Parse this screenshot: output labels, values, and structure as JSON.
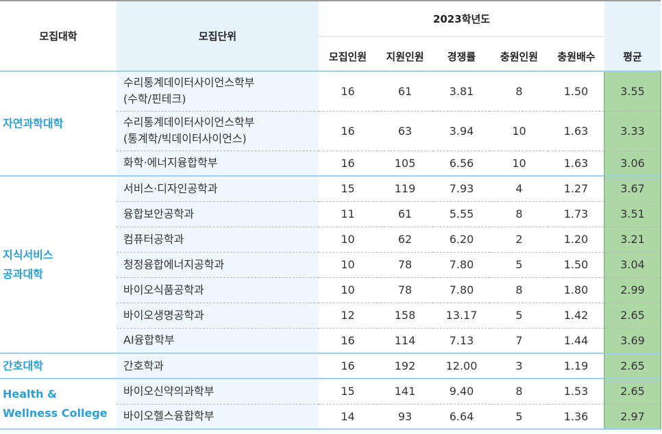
{
  "header": {
    "college": "모집대학",
    "unit": "모집단위",
    "year": "2023학년도",
    "columns": [
      "모집인원",
      "지원인원",
      "경쟁률",
      "충원인원",
      "충원배수"
    ],
    "average": "평균"
  },
  "groups": [
    {
      "college": [
        "자연과학대학"
      ],
      "rows": [
        {
          "unit": [
            "수리통계데이터사이언스학부",
            "(수학/핀테크)"
          ],
          "values": [
            "16",
            "61",
            "3.81",
            "8",
            "1.50"
          ],
          "average": "3.55"
        },
        {
          "unit": [
            "수리통계데이터사이언스학부",
            "(통계학/빅데이터사이언스)"
          ],
          "values": [
            "16",
            "63",
            "3.94",
            "10",
            "1.63"
          ],
          "average": "3.33"
        },
        {
          "unit": [
            "화학·에너지융합학부"
          ],
          "values": [
            "16",
            "105",
            "6.56",
            "10",
            "1.63"
          ],
          "average": "3.06"
        }
      ]
    },
    {
      "college": [
        "지식서비스",
        "공과대학"
      ],
      "rows": [
        {
          "unit": [
            "서비스·디자인공학과"
          ],
          "values": [
            "15",
            "119",
            "7.93",
            "4",
            "1.27"
          ],
          "average": "3.67"
        },
        {
          "unit": [
            "융합보안공학과"
          ],
          "values": [
            "11",
            "61",
            "5.55",
            "8",
            "1.73"
          ],
          "average": "3.51"
        },
        {
          "unit": [
            "컴퓨터공학과"
          ],
          "values": [
            "10",
            "62",
            "6.20",
            "2",
            "1.20"
          ],
          "average": "3.21"
        },
        {
          "unit": [
            "청정융합에너지공학과"
          ],
          "values": [
            "10",
            "78",
            "7.80",
            "5",
            "1.50"
          ],
          "average": "3.04"
        },
        {
          "unit": [
            "바이오식품공학과"
          ],
          "values": [
            "10",
            "78",
            "7.80",
            "8",
            "1.80"
          ],
          "average": "2.99"
        },
        {
          "unit": [
            "바이오생명공학과"
          ],
          "values": [
            "12",
            "158",
            "13.17",
            "5",
            "1.42"
          ],
          "average": "2.65"
        },
        {
          "unit": [
            "AI융합학부"
          ],
          "values": [
            "16",
            "114",
            "7.13",
            "7",
            "1.44"
          ],
          "average": "3.69"
        }
      ]
    },
    {
      "college": [
        "간호대학"
      ],
      "rows": [
        {
          "unit": [
            "간호학과"
          ],
          "values": [
            "16",
            "192",
            "12.00",
            "3",
            "1.19"
          ],
          "average": "2.65"
        }
      ]
    },
    {
      "college": [
        "Health &",
        "Wellness College"
      ],
      "rows": [
        {
          "unit": [
            "바이오신약의과학부"
          ],
          "values": [
            "15",
            "141",
            "9.40",
            "8",
            "1.53"
          ],
          "average": "2.65"
        },
        {
          "unit": [
            "바이오헬스융합학부"
          ],
          "values": [
            "14",
            "93",
            "6.64",
            "5",
            "1.36"
          ],
          "average": "2.97"
        }
      ]
    }
  ]
}
